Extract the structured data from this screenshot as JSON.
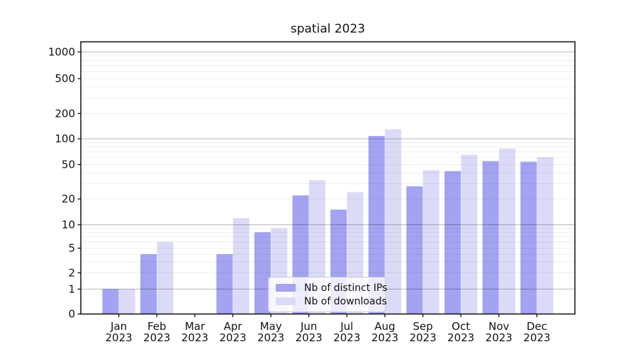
{
  "chart_data": {
    "type": "bar",
    "title": "spatial 2023",
    "x_axis": {
      "months": [
        "Jan",
        "Feb",
        "Mar",
        "Apr",
        "May",
        "Jun",
        "Jul",
        "Aug",
        "Sep",
        "Oct",
        "Nov",
        "Dec"
      ],
      "year": "2023"
    },
    "y_axis": {
      "scale": "symlog",
      "tick_labels": [
        "0",
        "1",
        "2",
        "5",
        "10",
        "20",
        "50",
        "100",
        "200",
        "500",
        "1000"
      ],
      "tick_values": [
        0,
        1,
        2,
        5,
        10,
        20,
        50,
        100,
        200,
        500,
        1000
      ],
      "range": [
        0,
        1300
      ],
      "grid": true
    },
    "series": [
      {
        "name": "Nb of distinct IPs",
        "slug": "distinct-ips",
        "color": "#a3a3f2",
        "values": [
          1,
          4,
          0,
          4,
          8,
          22,
          15,
          108,
          28,
          42,
          55,
          54
        ]
      },
      {
        "name": "Nb of downloads",
        "slug": "downloads",
        "color": "#dbdbf8",
        "values": [
          1,
          6,
          0,
          12,
          9,
          33,
          24,
          130,
          43,
          65,
          77,
          61
        ]
      }
    ],
    "legend_position": "lower-center",
    "colors": {
      "minor_grid": "rgba(0,0,0,0.08)",
      "major_grid": "rgba(0,0,0,0.28)",
      "spine": "#000000",
      "text": "#111111"
    }
  }
}
